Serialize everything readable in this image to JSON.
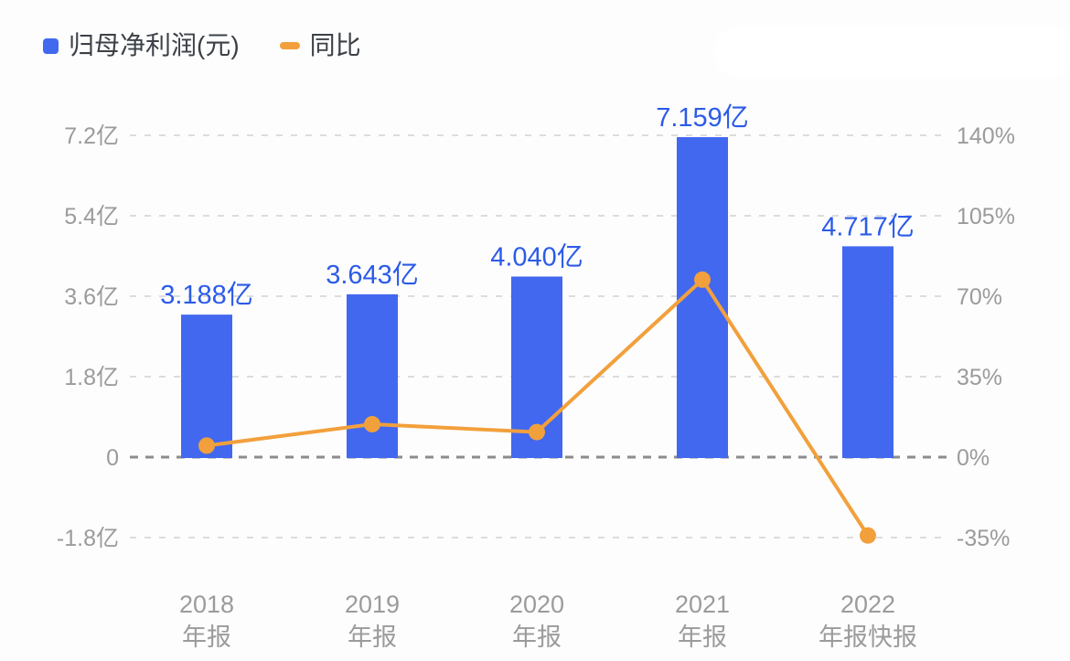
{
  "legend": {
    "items": [
      {
        "label": "归母净利润(元)",
        "swatch": "square"
      },
      {
        "label": "同比",
        "swatch": "dash"
      }
    ]
  },
  "chart_data": {
    "type": "bar+line",
    "categories": [
      {
        "line1": "2018",
        "line2": "年报"
      },
      {
        "line1": "2019",
        "line2": "年报"
      },
      {
        "line1": "2020",
        "line2": "年报"
      },
      {
        "line1": "2021",
        "line2": "年报"
      },
      {
        "line1": "2022",
        "line2": "年报快报"
      }
    ],
    "series": [
      {
        "name": "归母净利润(元)",
        "type": "bar",
        "unit": "亿",
        "values": [
          3.188,
          3.643,
          4.04,
          7.159,
          4.717
        ],
        "labels": [
          "3.188亿",
          "3.643亿",
          "4.040亿",
          "7.159亿",
          "4.717亿"
        ],
        "color": "#4268f0",
        "label_color": "#2c5be8"
      },
      {
        "name": "同比",
        "type": "line",
        "unit": "%",
        "values": [
          5.0,
          14.3,
          10.9,
          77.2,
          -34.1
        ],
        "color": "#f2a03c"
      }
    ],
    "left_axis": {
      "title": "",
      "tick_labels": [
        "7.2亿",
        "5.4亿",
        "3.6亿",
        "1.8亿",
        "0",
        "-1.8亿"
      ],
      "tick_values": [
        7.2,
        5.4,
        3.6,
        1.8,
        0,
        -1.8
      ],
      "max": 7.2,
      "min": -1.8
    },
    "right_axis": {
      "title": "",
      "tick_labels": [
        "140%",
        "105%",
        "70%",
        "35%",
        "0%",
        "-35%"
      ],
      "tick_values": [
        140,
        105,
        70,
        35,
        0,
        -35
      ],
      "max": 140,
      "min": -35
    },
    "grid": true,
    "grid_color": "#dcdcdc",
    "zero_line_color": "#8c8c8c",
    "axis_text_color": "#9b9b9b",
    "legend_position": "top-left"
  }
}
